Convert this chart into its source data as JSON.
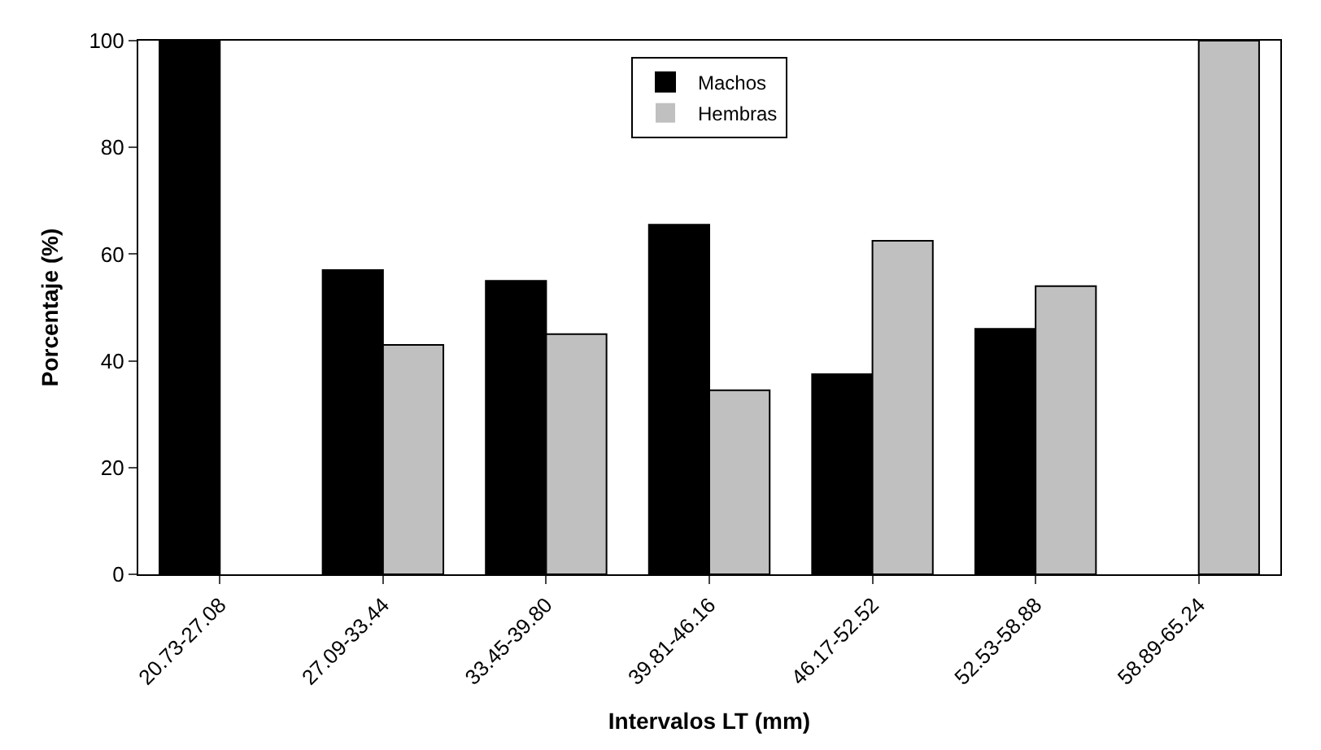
{
  "chart_data": {
    "type": "bar",
    "xlabel": "Intervalos LT (mm)",
    "ylabel": "Porcentaje (%)",
    "categories": [
      "20.73-27.08",
      "27.09-33.44",
      "33.45-39.80",
      "39.81-46.16",
      "46.17-52.52",
      "52.53-58.88",
      "58.89-65.24"
    ],
    "series": [
      {
        "name": "Machos",
        "color": "#000000",
        "values": [
          100,
          57,
          55,
          65.5,
          37.5,
          46,
          0
        ]
      },
      {
        "name": "Hembras",
        "color": "#c0c0c0",
        "values": [
          0,
          43,
          45,
          34.5,
          62.5,
          54,
          100
        ]
      }
    ],
    "ylim": [
      0,
      100
    ],
    "yticks": [
      0,
      20,
      40,
      60,
      80,
      100
    ],
    "grid": false,
    "legend": "top"
  }
}
